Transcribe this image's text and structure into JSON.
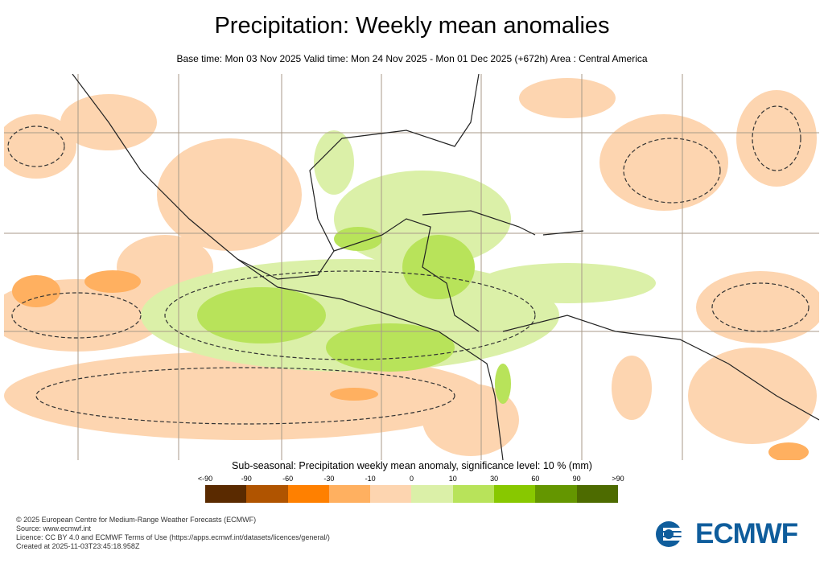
{
  "title": "Precipitation: Weekly mean anomalies",
  "subtitle": "Base time: Mon 03 Nov 2025 Valid time: Mon 24 Nov 2025 - Mon 01 Dec 2025 (+672h) Area : Central America",
  "legend": {
    "title": "Sub-seasonal: Precipitation weekly mean anomaly, significance level: 10 % (mm)",
    "ticks": [
      "<-90",
      "-90",
      "-60",
      "-30",
      "-10",
      "0",
      "10",
      "30",
      "60",
      "90",
      ">90"
    ],
    "colors": [
      "#5a2a00",
      "#b05400",
      "#ff8000",
      "#ffb060",
      "#fdd5b0",
      "#dbf0a8",
      "#b8e35a",
      "#88c800",
      "#649600",
      "#4d6b00"
    ]
  },
  "footer": {
    "lines": [
      "© 2025 European Centre for Medium-Range Weather Forecasts (ECMWF)",
      "Source: www.ecmwf.int",
      "Licence: CC BY 4.0 and ECMWF Terms of Use (https://apps.ecmwf.int/datasets/licences/general/)",
      "Created at 2025-11-03T23:45:18.958Z"
    ]
  },
  "logo": {
    "text": "ECMWF",
    "color": "#0f5d9c"
  }
}
